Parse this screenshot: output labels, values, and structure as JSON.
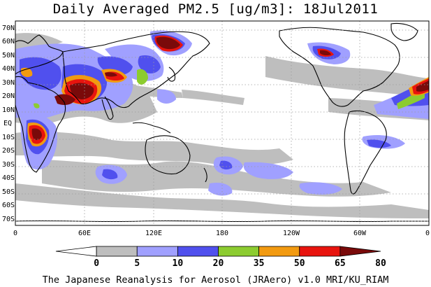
{
  "title": "Daily Averaged PM2.5 [ug/m3]: 18Jul2011",
  "footer": "The Japanese Reanalysis for Aerosol (JRAero) v1.0 MRI/KU_RIAM",
  "lat_labels": [
    "70N",
    "60N",
    "50N",
    "40N",
    "30N",
    "20N",
    "10N",
    "EQ",
    "10S",
    "20S",
    "30S",
    "40S",
    "50S",
    "60S",
    "70S"
  ],
  "lon_labels": [
    "0",
    "60E",
    "120E",
    "180",
    "120W",
    "60W",
    "0"
  ],
  "colorbar": {
    "tick_labels": [
      "0",
      "5",
      "10",
      "20",
      "35",
      "50",
      "65",
      "80"
    ],
    "colors": [
      "#ffffff",
      "#bebebe",
      "#a0a0ff",
      "#5050ee",
      "#8ccc30",
      "#f29a10",
      "#e8140e",
      "#7a0a0a"
    ]
  },
  "legend_colors": {
    "land_outline": "#000000",
    "grid": "#9c9c9c"
  }
}
